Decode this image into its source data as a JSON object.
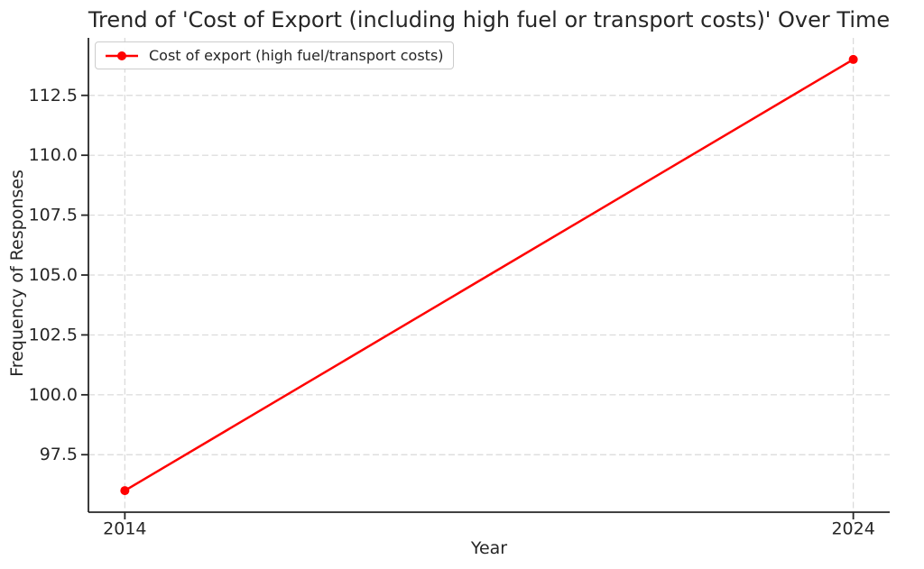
{
  "figure": {
    "background": "#ffffff",
    "text_color": "#262626"
  },
  "chart_data": {
    "type": "line",
    "title": "Trend of 'Cost of Export (including high fuel or transport costs)' Over Time",
    "xlabel": "Year",
    "ylabel": "Frequency of Responses",
    "x": [
      2014,
      2024
    ],
    "series": [
      {
        "name": "Cost of export (high fuel/transport costs)",
        "values": [
          96,
          114
        ],
        "color": "#ff0000",
        "marker": "circle",
        "line_style": "solid"
      }
    ],
    "xlim": [
      2013.5,
      2024.5
    ],
    "ylim": [
      95.1,
      114.9
    ],
    "x_ticks": [
      2014,
      2024
    ],
    "x_tick_labels": [
      "2014",
      "2024"
    ],
    "y_ticks": [
      97.5,
      100.0,
      102.5,
      105.0,
      107.5,
      110.0,
      112.5
    ],
    "y_tick_labels": [
      "97.5",
      "100.0",
      "102.5",
      "105.0",
      "107.5",
      "110.0",
      "112.5"
    ],
    "grid": {
      "visible": true,
      "style": "dashed",
      "color": "#d9d9d9"
    },
    "axes": {
      "spines": [
        "left",
        "bottom"
      ],
      "spine_color": "#262626"
    },
    "legend": {
      "visible": true,
      "position": "upper-left"
    }
  }
}
